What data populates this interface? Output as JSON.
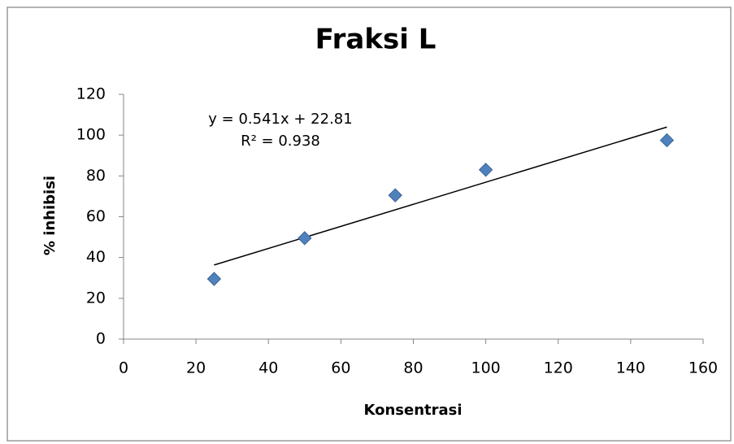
{
  "chart_data": {
    "type": "scatter",
    "title": "Fraksi L",
    "x_label": "Konsentrasi",
    "y_label": "% inhibisi",
    "series": [
      {
        "name": "% inhibisi",
        "color": "#4f81bd",
        "x": [
          25,
          50,
          75,
          100,
          150
        ],
        "values": [
          29.5,
          49.5,
          70.5,
          83,
          97.5
        ]
      }
    ],
    "trendline": {
      "slope": 0.541,
      "intercept": 22.81,
      "color": "#000000",
      "equation": "y = 0.541x + 22.81",
      "r_squared": "R² = 0.938"
    },
    "xlim": [
      0,
      160
    ],
    "xticks": [
      0,
      20,
      40,
      60,
      80,
      100,
      120,
      140,
      160
    ],
    "ylim": [
      0,
      120
    ],
    "yticks": [
      0,
      20,
      40,
      60,
      80,
      100,
      120
    ],
    "grid": false
  }
}
